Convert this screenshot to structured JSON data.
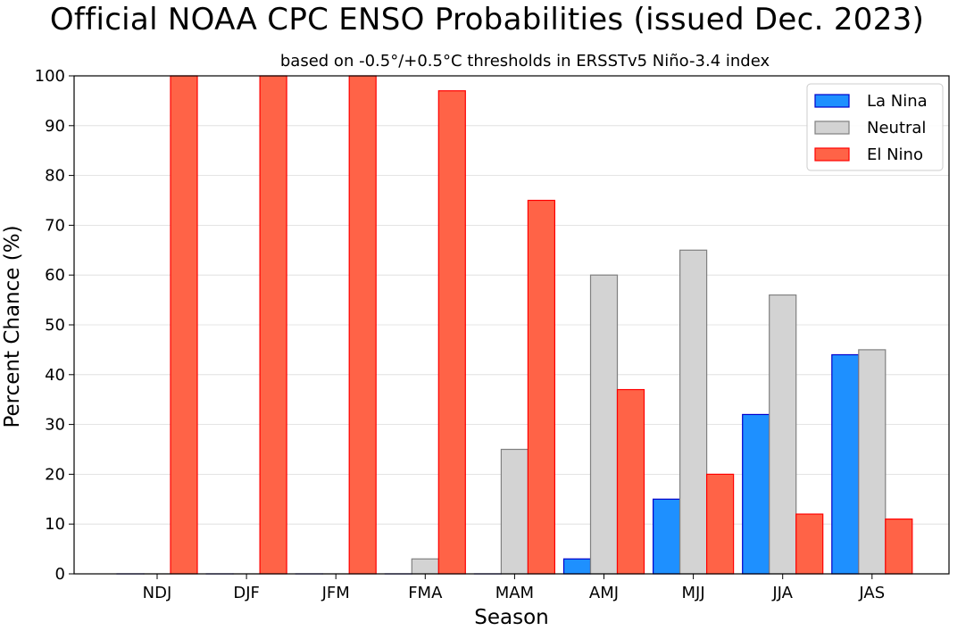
{
  "chart_data": {
    "type": "bar",
    "title": "Official NOAA CPC ENSO Probabilities (issued Dec. 2023)",
    "subtitle": "based on -0.5°/+0.5°C thresholds in ERSSTv5 Niño-3.4 index",
    "xlabel": "Season",
    "ylabel": "Percent Chance (%)",
    "ylim": [
      0,
      100
    ],
    "yticks": [
      0,
      10,
      20,
      30,
      40,
      50,
      60,
      70,
      80,
      90,
      100
    ],
    "grid": "horizontal",
    "legend_position": "top-right",
    "categories": [
      "NDJ",
      "DJF",
      "JFM",
      "FMA",
      "MAM",
      "AMJ",
      "MJJ",
      "JJA",
      "JAS"
    ],
    "series": [
      {
        "name": "La Nina",
        "color": "#1e90ff",
        "edge": "#0000cc",
        "values": [
          0,
          0,
          0,
          0,
          0,
          3,
          15,
          32,
          44
        ]
      },
      {
        "name": "Neutral",
        "color": "#d3d3d3",
        "edge": "#808080",
        "values": [
          0,
          0,
          0,
          3,
          25,
          60,
          65,
          56,
          45
        ]
      },
      {
        "name": "El Nino",
        "color": "#ff6347",
        "edge": "#ff0000",
        "values": [
          100,
          100,
          100,
          97,
          75,
          37,
          20,
          12,
          11
        ]
      }
    ]
  }
}
